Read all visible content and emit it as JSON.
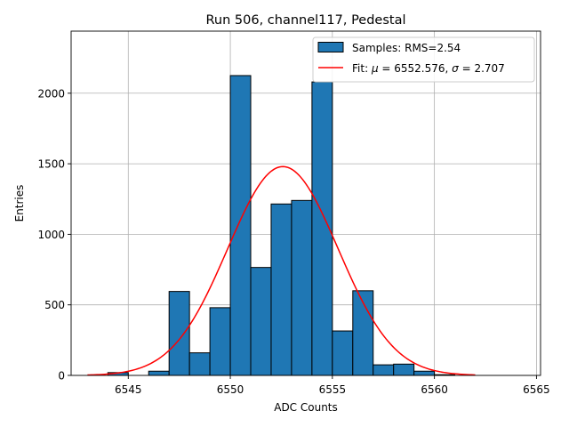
{
  "chart_data": {
    "type": "bar",
    "title": "Run 506, channel117, Pedestal",
    "xlabel": "ADC Counts",
    "ylabel": "Entries",
    "xlim": [
      6542.2,
      6565.2
    ],
    "ylim": [
      0,
      2440
    ],
    "xticks": [
      "6545",
      "6550",
      "6555",
      "6560",
      "6565"
    ],
    "xtick_values": [
      6545,
      6550,
      6555,
      6560,
      6565
    ],
    "yticks": [
      "0",
      "500",
      "1000",
      "1500",
      "2000"
    ],
    "ytick_values": [
      0,
      500,
      1000,
      1500,
      2000
    ],
    "grid": true,
    "legend_position": "top-right",
    "bar_color": "#1f77b4",
    "fit_color": "#ff0000",
    "histogram": {
      "name": "Samples: RMS=2.54",
      "bin_edges": [
        6544.0,
        6545.0,
        6546.0,
        6547.0,
        6548.0,
        6549.0,
        6550.0,
        6551.0,
        6552.0,
        6553.0,
        6554.0,
        6555.0,
        6556.0,
        6557.0,
        6558.0,
        6559.0,
        6560.0,
        6561.0
      ],
      "counts": [
        20,
        0,
        30,
        595,
        160,
        480,
        2125,
        765,
        1215,
        1240,
        2080,
        315,
        600,
        75,
        80,
        30,
        5
      ]
    },
    "fit": {
      "name": "Fit: μ = 6552.576, σ = 2.707",
      "label_prefix": "Fit: ",
      "mu_symbol": "μ",
      "mu_text": " = 6552.576, ",
      "sigma_symbol": "σ",
      "sigma_text": " = 2.707",
      "mu": 6552.576,
      "sigma": 2.707,
      "amplitude": 1480,
      "x_range": [
        6543.0,
        6562.0
      ]
    }
  }
}
